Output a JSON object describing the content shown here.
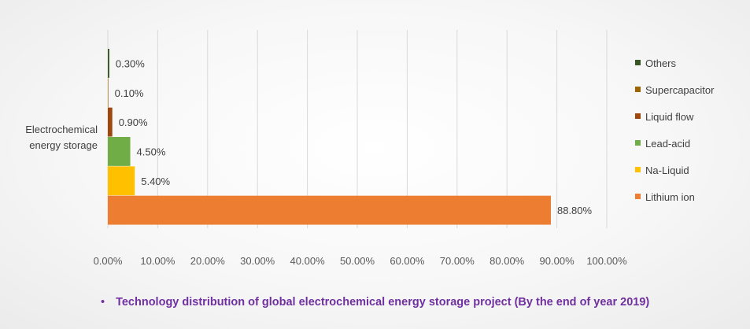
{
  "caption": {
    "bullet": "•",
    "text": "Technology distribution of global electrochemical energy storage project (By the end of year 2019)"
  },
  "chart_data": {
    "type": "bar",
    "orientation": "horizontal",
    "categories": [
      "Electrochemical energy storage"
    ],
    "category_label_lines": [
      "Electrochemical",
      "energy storage"
    ],
    "xlim": [
      0,
      100
    ],
    "x_ticks": [
      0,
      10,
      20,
      30,
      40,
      50,
      60,
      70,
      80,
      90,
      100
    ],
    "x_tick_labels": [
      "0.00%",
      "10.00%",
      "20.00%",
      "30.00%",
      "40.00%",
      "50.00%",
      "60.00%",
      "70.00%",
      "80.00%",
      "90.00%",
      "100.00%"
    ],
    "grid": true,
    "legend_position": "right",
    "series": [
      {
        "name": "Others",
        "value": 0.3,
        "label": "0.30%",
        "color": "#375623"
      },
      {
        "name": "Supercapacitor",
        "value": 0.1,
        "label": "0.10%",
        "color": "#9c6500"
      },
      {
        "name": "Liquid flow",
        "value": 0.9,
        "label": "0.90%",
        "color": "#9e480e"
      },
      {
        "name": "Lead-acid",
        "value": 4.5,
        "label": "4.50%",
        "color": "#70ad47"
      },
      {
        "name": "Na-Liquid",
        "value": 5.4,
        "label": "5.40%",
        "color": "#ffc000"
      },
      {
        "name": "Lithium ion",
        "value": 88.8,
        "label": "88.80%",
        "color": "#ed7d31"
      }
    ]
  }
}
